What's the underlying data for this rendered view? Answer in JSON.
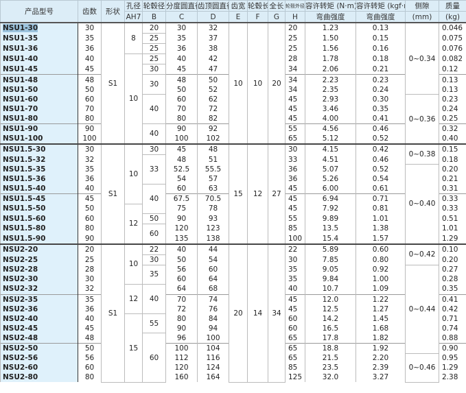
{
  "header": {
    "model": "产品型号",
    "teeth": "齿数",
    "shape": "形状",
    "a_top": "孔径",
    "a_sub": "AH7",
    "b_top": "轮毂径",
    "b_sub": "B",
    "c_top": "分度圆直径",
    "c_sub": "C",
    "d_top": "齿顶圆直径",
    "d_sub": "D",
    "e_top": "齿宽",
    "e_sub": "E",
    "f_top": "轮毂长",
    "f_sub": "F",
    "g_top": "全长",
    "g_sub": "G",
    "h_top": "轮毂外径",
    "h_sub": "H",
    "nm_top": "容许转矩 (N·m)",
    "nm_sub": "弯曲强度",
    "kgf_top": "容许转矩 (kgf·m)",
    "kgf_sub": "弯曲强度",
    "bl_top": "侧隙",
    "bl_sub": "(mm)",
    "mass_top": "质量",
    "mass_sub": "(kg)"
  },
  "selected_model": "NSU1-30",
  "groups": [
    {
      "rows": [
        [
          "NSU1-30",
          "30",
          "30",
          "32",
          "20",
          "1.23",
          "0.13",
          "0.046"
        ],
        [
          "NSU1-35",
          "35",
          "35",
          "37",
          "25",
          "1.50",
          "0.15",
          "0.075"
        ],
        [
          "NSU1-36",
          "36",
          "36",
          "38",
          "25",
          "1.56",
          "0.16",
          "0.076"
        ],
        [
          "NSU1-40",
          "40",
          "40",
          "42",
          "28",
          "1.78",
          "0.18",
          "0.082"
        ],
        [
          "NSU1-45",
          "45",
          "45",
          "47",
          "34",
          "2.06",
          "0.21",
          "0.12"
        ],
        [
          "NSU1-48",
          "48",
          "48",
          "50",
          "34",
          "2.23",
          "0.23",
          "0.13"
        ],
        [
          "NSU1-50",
          "50",
          "50",
          "52",
          "34",
          "2.35",
          "0.24",
          "0.13"
        ],
        [
          "NSU1-60",
          "60",
          "60",
          "62",
          "45",
          "2.93",
          "0.30",
          "0.23"
        ],
        [
          "NSU1-70",
          "70",
          "70",
          "72",
          "45",
          "3.46",
          "0.35",
          "0.24"
        ],
        [
          "NSU1-80",
          "80",
          "80",
          "82",
          "45",
          "4.00",
          "0.41",
          "0.25"
        ],
        [
          "NSU1-90",
          "90",
          "90",
          "92",
          "55",
          "4.56",
          "0.46",
          "0.32"
        ],
        [
          "NSU1-100",
          "100",
          "100",
          "102",
          "65",
          "5.12",
          "0.52",
          "0.40"
        ]
      ],
      "shape": [
        [
          "S1",
          12
        ]
      ],
      "A": [
        [
          "8",
          3
        ],
        [
          "10",
          9
        ]
      ],
      "B": [
        [
          "20",
          1
        ],
        [
          "25",
          1
        ],
        [
          "25",
          1
        ],
        [
          "25",
          1
        ],
        [
          "30",
          1
        ],
        [
          "30",
          2
        ],
        [
          "40",
          3
        ],
        [
          "40",
          2
        ]
      ],
      "E": [
        [
          "10",
          12
        ]
      ],
      "F": [
        [
          "10",
          12
        ]
      ],
      "G": [
        [
          "20",
          12
        ]
      ],
      "backlash": [
        [
          "0~0.34",
          7
        ],
        [
          "0~0.36",
          5
        ]
      ]
    },
    {
      "rows": [
        [
          "NSU1.5-30",
          "30",
          "45",
          "48",
          "30",
          "4.15",
          "0.42",
          "0.15"
        ],
        [
          "NSU1.5-32",
          "32",
          "48",
          "51",
          "33",
          "4.51",
          "0.46",
          "0.18"
        ],
        [
          "NSU1.5-35",
          "35",
          "52.5",
          "55.5",
          "36",
          "5.07",
          "0.52",
          "0.20"
        ],
        [
          "NSU1.5-36",
          "36",
          "54",
          "57",
          "36",
          "5.26",
          "0.54",
          "0.21"
        ],
        [
          "NSU1.5-40",
          "40",
          "60",
          "63",
          "45",
          "6.00",
          "0.61",
          "0.31"
        ],
        [
          "NSU1.5-45",
          "45",
          "67.5",
          "70.5",
          "45",
          "6.94",
          "0.71",
          "0.33"
        ],
        [
          "NSU1.5-50",
          "50",
          "75",
          "78",
          "45",
          "7.92",
          "0.81",
          "0.33"
        ],
        [
          "NSU1.5-60",
          "60",
          "90",
          "93",
          "55",
          "9.89",
          "1.01",
          "0.51"
        ],
        [
          "NSU1.5-80",
          "80",
          "120",
          "123",
          "85",
          "13.5",
          "1.38",
          "1.01"
        ],
        [
          "NSU1.5-90",
          "90",
          "135",
          "138",
          "100",
          "15.4",
          "1.57",
          "1.29"
        ]
      ],
      "shape": [
        [
          "S1",
          10
        ]
      ],
      "A": [
        [
          "10",
          6
        ],
        [
          "12",
          4
        ]
      ],
      "B": [
        [
          "30",
          1
        ],
        [
          "33",
          3
        ],
        [
          "40",
          3
        ],
        [
          "50",
          1
        ],
        [
          "60",
          2
        ]
      ],
      "E": [
        [
          "15",
          10
        ]
      ],
      "F": [
        [
          "12",
          10
        ]
      ],
      "G": [
        [
          "27",
          10
        ]
      ],
      "backlash": [
        [
          "0~0.38",
          2
        ],
        [
          "0~0.40",
          8
        ]
      ]
    },
    {
      "rows": [
        [
          "NSU2-20",
          "20",
          "40",
          "44",
          "22",
          "5.89",
          "0.60",
          "0.10"
        ],
        [
          "NSU2-25",
          "25",
          "50",
          "54",
          "30",
          "7.85",
          "0.80",
          "0.20"
        ],
        [
          "NSU2-28",
          "28",
          "56",
          "60",
          "35",
          "9.05",
          "0.92",
          "0.27"
        ],
        [
          "NSU2-30",
          "30",
          "60",
          "64",
          "35",
          "9.84",
          "1.00",
          "0.28"
        ],
        [
          "NSU2-32",
          "32",
          "64",
          "68",
          "40",
          "10.7",
          "1.09",
          "0.35"
        ],
        [
          "NSU2-35",
          "35",
          "70",
          "74",
          "45",
          "12.0",
          "1.22",
          "0.41"
        ],
        [
          "NSU2-36",
          "36",
          "72",
          "76",
          "45",
          "12.5",
          "1.27",
          "0.42"
        ],
        [
          "NSU2-40",
          "40",
          "80",
          "84",
          "60",
          "14.2",
          "1.45",
          "0.71"
        ],
        [
          "NSU2-45",
          "45",
          "90",
          "94",
          "60",
          "16.5",
          "1.68",
          "0.74"
        ],
        [
          "NSU2-48",
          "48",
          "96",
          "100",
          "65",
          "17.8",
          "1.82",
          "0.88"
        ],
        [
          "NSU2-50",
          "50",
          "100",
          "104",
          "65",
          "18.8",
          "1.92",
          "0.90"
        ],
        [
          "NSU2-56",
          "56",
          "112",
          "116",
          "65",
          "21.5",
          "2.20",
          "0.95"
        ],
        [
          "NSU2-60",
          "60",
          "120",
          "124",
          "85",
          "23.5",
          "2.39",
          "1.29"
        ],
        [
          "NSU2-80",
          "80",
          "160",
          "164",
          "125",
          "32.0",
          "3.27",
          "2.38"
        ]
      ],
      "shape": [
        [
          "S1",
          14
        ]
      ],
      "A": [
        [
          "10",
          4
        ],
        [
          "12",
          3
        ],
        [
          "15",
          7
        ]
      ],
      "B": [
        [
          "22",
          1
        ],
        [
          "30",
          1
        ],
        [
          "35",
          2
        ],
        [
          "40",
          3
        ],
        [
          "55",
          2
        ],
        [
          "60",
          5
        ]
      ],
      "E": [
        [
          "20",
          14
        ]
      ],
      "F": [
        [
          "14",
          14
        ]
      ],
      "G": [
        [
          "34",
          14
        ]
      ],
      "backlash": [
        [
          "0~0.42",
          2
        ],
        [
          "0~0.44",
          9
        ],
        [
          "0~0.46",
          3
        ]
      ]
    }
  ]
}
